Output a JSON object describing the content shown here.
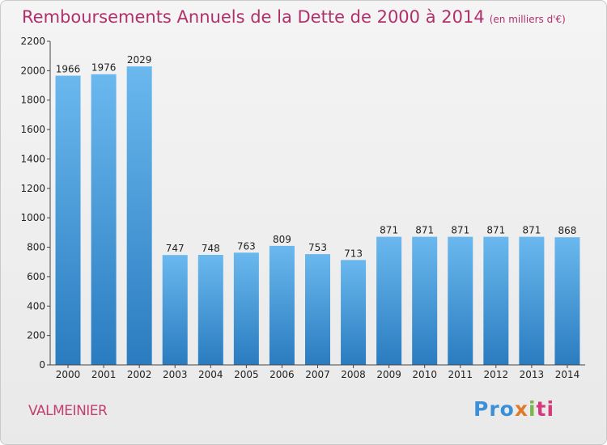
{
  "title": "Remboursements Annuels de la Dette de 2000 à 2014",
  "subtitle": "(en milliers d'€)",
  "commune": "VALMEINIER",
  "logo_parts": [
    "Pro",
    "x",
    "i",
    "ti"
  ],
  "colors": {
    "title": "#b0306b",
    "bar_top": "#6ab8ee",
    "bar_bottom": "#2a7cc0"
  },
  "chart_data": {
    "type": "bar",
    "title": "Remboursements Annuels de la Dette de 2000 à 2014",
    "subtitle": "(en milliers d'€)",
    "xlabel": "",
    "ylabel": "",
    "categories": [
      "2000",
      "2001",
      "2002",
      "2003",
      "2004",
      "2005",
      "2006",
      "2007",
      "2008",
      "2009",
      "2010",
      "2011",
      "2012",
      "2013",
      "2014"
    ],
    "values": [
      1966,
      1976,
      2029,
      747,
      748,
      763,
      809,
      753,
      713,
      871,
      871,
      871,
      871,
      871,
      868
    ],
    "ylim": [
      0,
      2200
    ],
    "yticks": [
      0,
      200,
      400,
      600,
      800,
      1000,
      1200,
      1400,
      1600,
      1800,
      2000,
      2200
    ],
    "grid": false,
    "data_labels": true
  }
}
